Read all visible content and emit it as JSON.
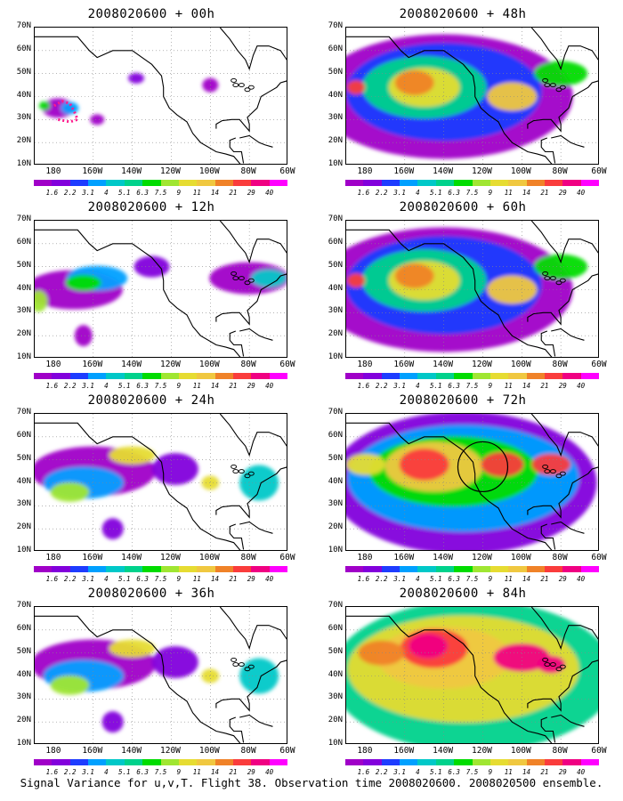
{
  "panels": [
    {
      "title": "2008020600 + 00h",
      "col": 0,
      "row": 0,
      "level": 0
    },
    {
      "title": "2008020600 + 48h",
      "col": 1,
      "row": 0,
      "level": 3
    },
    {
      "title": "2008020600 + 12h",
      "col": 0,
      "row": 1,
      "level": 1
    },
    {
      "title": "2008020600 + 60h",
      "col": 1,
      "row": 1,
      "level": 3
    },
    {
      "title": "2008020600 + 24h",
      "col": 0,
      "row": 2,
      "level": 2
    },
    {
      "title": "2008020600 + 72h",
      "col": 1,
      "row": 2,
      "level": 4
    },
    {
      "title": "2008020600 + 36h",
      "col": 0,
      "row": 3,
      "level": 2
    },
    {
      "title": "2008020600 + 84h",
      "col": 1,
      "row": 3,
      "level": 5
    }
  ],
  "lat_labels": [
    "70N",
    "60N",
    "50N",
    "40N",
    "30N",
    "20N",
    "10N"
  ],
  "lon_labels": [
    "180",
    "160W",
    "140W",
    "120W",
    "100W",
    "80W",
    "60W"
  ],
  "colorbar": {
    "labels": [
      "1.6",
      "2.2",
      "3.1",
      "4",
      "5.1",
      "6.3",
      "7.5",
      "9",
      "11",
      "14",
      "21",
      "29",
      "40"
    ],
    "colors": [
      "#a000c8",
      "#8200dc",
      "#1e3cff",
      "#00a0ff",
      "#00c8c8",
      "#00d28c",
      "#00dc00",
      "#a0e632",
      "#e6dc32",
      "#f0c840",
      "#f08228",
      "#fa3c3c",
      "#f00082",
      "#ff00ff"
    ]
  },
  "footer": "Signal Variance for u,v,T. Flight 38. Observation time 2008020600. 2008020500 ensemble."
}
